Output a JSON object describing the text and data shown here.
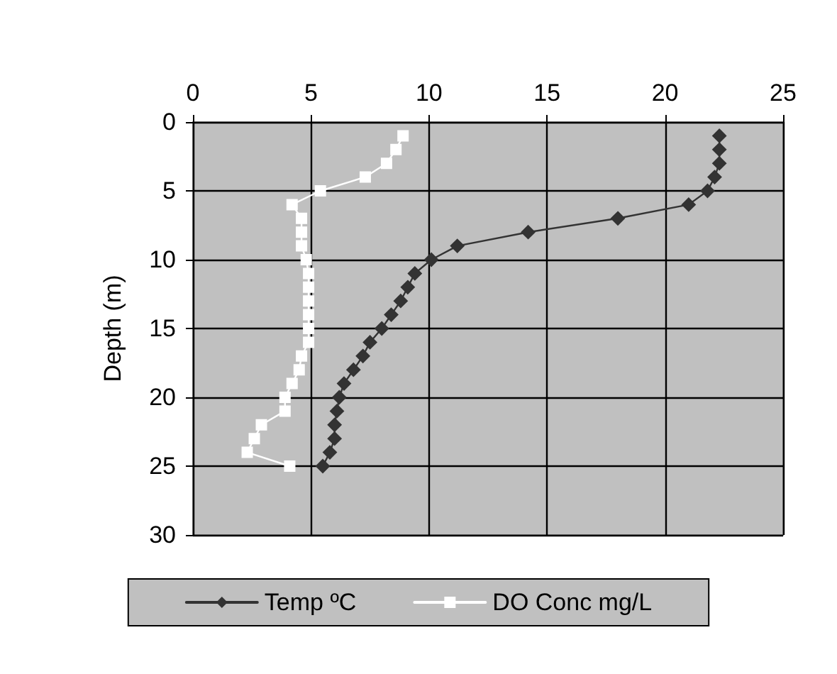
{
  "chart_data": {
    "type": "line",
    "ylabel": "Depth (m)",
    "xlim": [
      0,
      25
    ],
    "xticks": [
      0,
      5,
      10,
      15,
      20,
      25
    ],
    "ylim": [
      30,
      0
    ],
    "yticks": [
      0,
      5,
      10,
      15,
      20,
      25,
      30
    ],
    "grid": true,
    "legend": "bottom",
    "line_style": "solid",
    "series": [
      {
        "name": "Temp ºC",
        "color": "#333333",
        "marker": "diamond",
        "x": [
          22.3,
          22.3,
          22.3,
          22.1,
          21.8,
          21.0,
          18.0,
          14.2,
          11.2,
          10.1,
          9.4,
          9.1,
          8.8,
          8.4,
          8.0,
          7.5,
          7.2,
          6.8,
          6.4,
          6.2,
          6.1,
          6.0,
          6.0,
          5.8,
          5.5
        ],
        "values": [
          1,
          2,
          3,
          4,
          5,
          6,
          7,
          8,
          9,
          10,
          11,
          12,
          13,
          14,
          15,
          16,
          17,
          18,
          19,
          20,
          21,
          22,
          23,
          24,
          25
        ]
      },
      {
        "name": "DO Conc mg/L",
        "color": "#ffffff",
        "marker": "square",
        "x": [
          8.9,
          8.6,
          8.2,
          7.3,
          5.4,
          4.2,
          4.6,
          4.6,
          4.6,
          4.8,
          4.9,
          4.9,
          4.9,
          4.9,
          4.9,
          4.9,
          4.6,
          4.5,
          4.2,
          3.9,
          3.9,
          2.9,
          2.6,
          2.3,
          4.1
        ],
        "values": [
          1,
          2,
          3,
          4,
          5,
          6,
          7,
          8,
          9,
          10,
          11,
          12,
          13,
          14,
          15,
          16,
          17,
          18,
          19,
          20,
          21,
          22,
          23,
          24,
          25
        ]
      }
    ]
  }
}
